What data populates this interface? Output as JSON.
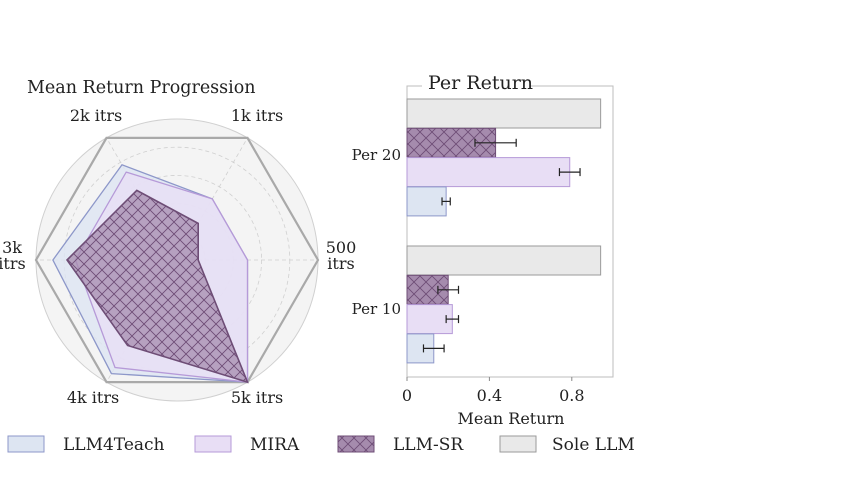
{
  "colors": {
    "LLM4Teach": {
      "fill": "#dde5f2",
      "stroke": "#8d97c9"
    },
    "MIRA": {
      "fill": "#e8def5",
      "stroke": "#b69ad8"
    },
    "LLM-SR": {
      "fill": "#a58bad",
      "stroke": "#6e4d76"
    },
    "Sole LLM": {
      "fill": "#e9e9e9",
      "stroke": "#9a9a9a"
    },
    "grid": "#d0d0d0",
    "frame": "#aaaaaa",
    "bg": "#f4f4f4"
  },
  "legend": [
    {
      "key": "LLM4Teach",
      "label": "LLM4Teach",
      "hatch": false
    },
    {
      "key": "MIRA",
      "label": "MIRA",
      "hatch": false
    },
    {
      "key": "LLM-SR",
      "label": "LLM-SR",
      "hatch": true
    },
    {
      "key": "Sole LLM",
      "label": "Sole LLM",
      "hatch": false
    }
  ],
  "chart_data": [
    {
      "type": "radar",
      "title": "Mean Return Progression",
      "axes": [
        "500 itrs",
        "1k itrs",
        "2k itrs",
        "3k itrs",
        "4k itrs",
        "5k itrs"
      ],
      "axis_label_lines": [
        [
          "500",
          "itrs"
        ],
        [
          "1k itrs"
        ],
        [
          "2k itrs"
        ],
        [
          "3k",
          "itrs"
        ],
        [
          "4k itrs"
        ],
        [
          "5k itrs"
        ]
      ],
      "rmax": 1.0,
      "grid_levels": [
        0.2,
        0.4,
        0.6,
        0.8
      ],
      "series": [
        {
          "name": "Sole LLM",
          "values": [
            1.0,
            1.0,
            1.0,
            1.0,
            1.0,
            1.0
          ]
        },
        {
          "name": "LLM4Teach",
          "values": [
            0.5,
            0.5,
            0.78,
            0.88,
            0.93,
            1.0
          ]
        },
        {
          "name": "MIRA",
          "values": [
            0.5,
            0.5,
            0.72,
            0.72,
            0.88,
            1.0
          ]
        },
        {
          "name": "LLM-SR",
          "values": [
            0.15,
            0.3,
            0.57,
            0.78,
            0.7,
            1.0
          ]
        }
      ]
    },
    {
      "type": "bar",
      "orientation": "horizontal",
      "title": "Per Return",
      "categories": [
        "Per 20",
        "Per 10"
      ],
      "xlabel": "Mean Return",
      "xlim": [
        0,
        1.0
      ],
      "xticks": [
        0,
        0.4,
        0.8
      ],
      "xtick_labels": [
        "0",
        "0.4",
        "0.8"
      ],
      "series": [
        {
          "name": "Sole LLM",
          "values": [
            0.94,
            0.94
          ],
          "errors": [
            0,
            0
          ]
        },
        {
          "name": "LLM-SR",
          "values": [
            0.43,
            0.2
          ],
          "errors": [
            0.1,
            0.05
          ]
        },
        {
          "name": "MIRA",
          "values": [
            0.79,
            0.22
          ],
          "errors": [
            0.05,
            0.03
          ]
        },
        {
          "name": "LLM4Teach",
          "values": [
            0.19,
            0.13
          ],
          "errors": [
            0.02,
            0.05
          ]
        }
      ]
    }
  ]
}
